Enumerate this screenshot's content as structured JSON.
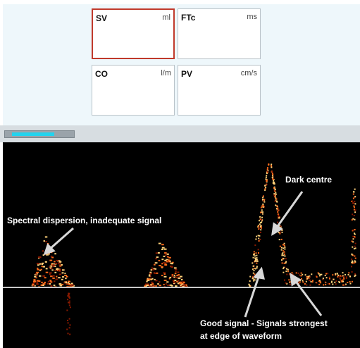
{
  "tiles": {
    "sv": {
      "label": "SV",
      "unit": "ml"
    },
    "ftc": {
      "label": "FTc",
      "unit": "ms"
    },
    "co": {
      "label": "CO",
      "unit": "l/m"
    },
    "pv": {
      "label": "PV",
      "unit": "cm/s"
    }
  },
  "scroll": {
    "fill_fraction": 0.7
  },
  "annotations": {
    "dispersion": "Spectral dispersion, inadequate signal",
    "dark_centre": "Dark centre",
    "good_signal_line1": "Good signal - Signals strongest",
    "good_signal_line2": "at edge of waveform"
  },
  "colors": {
    "selected_border": "#c0392b",
    "thumb": "#22d3ee",
    "panel_bg": "#eef7fb",
    "signal_hot": "#ffd27a",
    "signal_mid": "#ff6a1a",
    "signal_low": "#8a1a00"
  }
}
